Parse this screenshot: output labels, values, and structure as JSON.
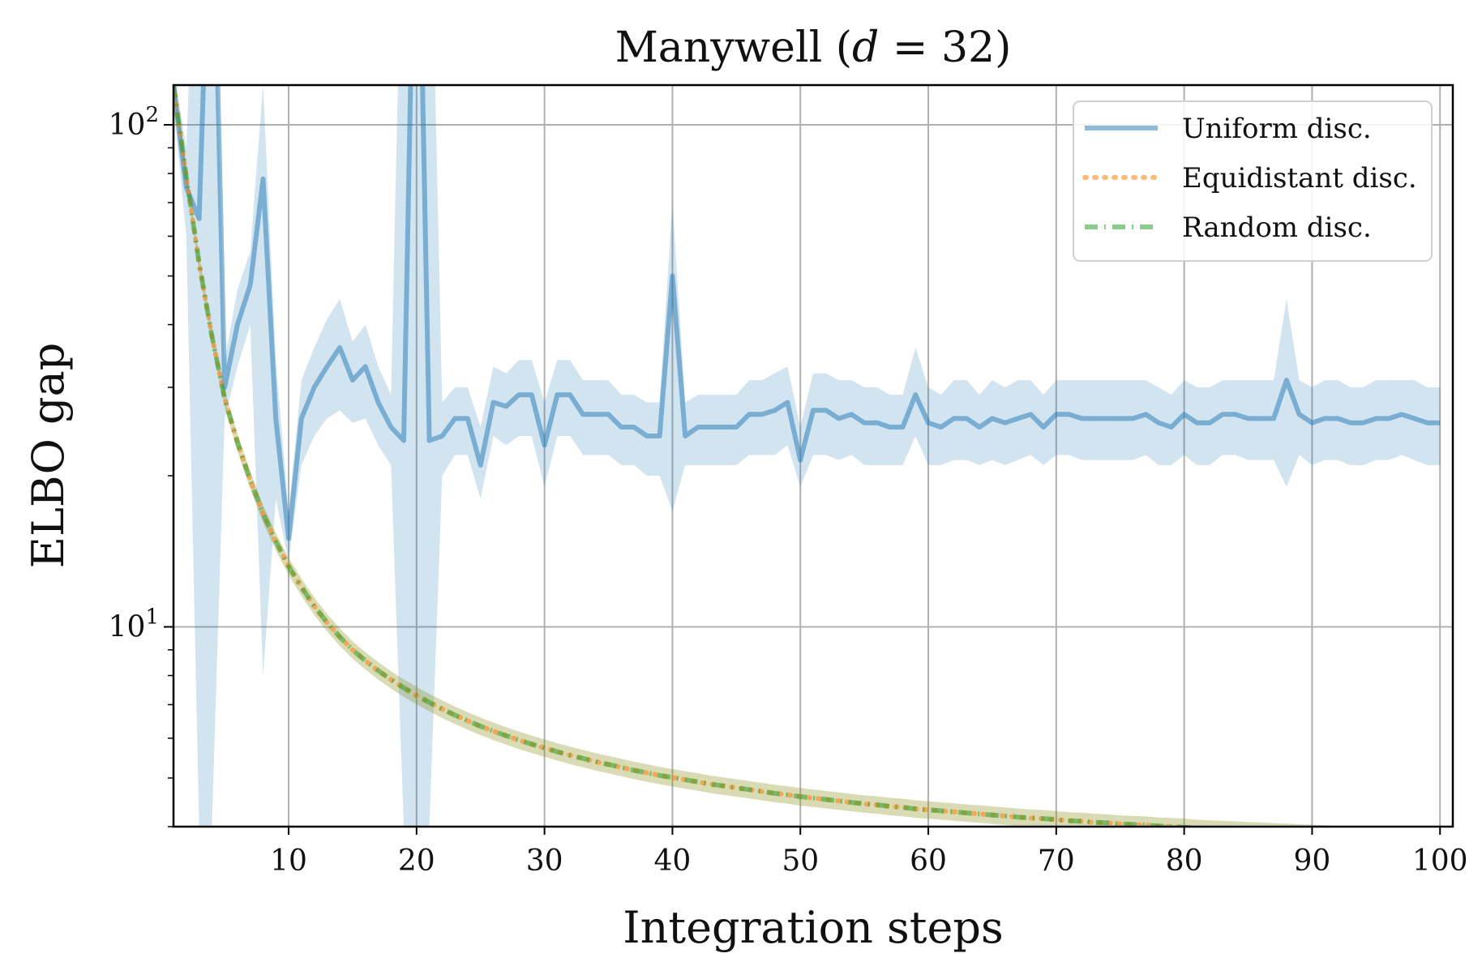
{
  "chart_data": {
    "type": "line",
    "title": "Manywell (d = 32)",
    "title_main": "Manywell (",
    "title_var": "d",
    "title_rest": " = 32)",
    "xlabel": "Integration steps",
    "ylabel": "ELBO gap",
    "yscale": "log",
    "xlim": [
      1,
      101
    ],
    "ylim": [
      4.0,
      120
    ],
    "grid": true,
    "legend_loc": "upper right",
    "xticks": [
      10,
      20,
      30,
      40,
      50,
      60,
      70,
      80,
      90,
      100
    ],
    "yticks": [
      {
        "value": 10,
        "base": "10",
        "exp": "1"
      },
      {
        "value": 100,
        "base": "10",
        "exp": "2"
      }
    ],
    "x": [
      1,
      2,
      3,
      4,
      5,
      6,
      7,
      8,
      9,
      10,
      11,
      12,
      13,
      14,
      15,
      16,
      17,
      18,
      19,
      20,
      21,
      22,
      23,
      24,
      25,
      26,
      27,
      28,
      29,
      30,
      31,
      32,
      33,
      34,
      35,
      36,
      37,
      38,
      39,
      40,
      41,
      42,
      43,
      44,
      45,
      46,
      47,
      48,
      49,
      50,
      51,
      52,
      53,
      54,
      55,
      56,
      57,
      58,
      59,
      60,
      61,
      62,
      63,
      64,
      65,
      66,
      67,
      68,
      69,
      70,
      71,
      72,
      73,
      74,
      75,
      76,
      77,
      78,
      79,
      80,
      81,
      82,
      83,
      84,
      85,
      86,
      87,
      88,
      89,
      90,
      91,
      92,
      93,
      94,
      95,
      96,
      97,
      98,
      99,
      100
    ],
    "series": [
      {
        "name": "Uniform disc.",
        "color": "#1f77b4",
        "style": "solid",
        "values": [
          120,
          75,
          65,
          400,
          30,
          40,
          48,
          78,
          26,
          15,
          26,
          30,
          33,
          36,
          31,
          33,
          28,
          25,
          23.5,
          500,
          23.5,
          24,
          26,
          26,
          21,
          28,
          27.5,
          29,
          29,
          23,
          29,
          29,
          26.5,
          26.5,
          26.5,
          25,
          25,
          24,
          24,
          50,
          24,
          25,
          25,
          25,
          25,
          26.5,
          26.5,
          27,
          28,
          21.5,
          27,
          27,
          26,
          26.5,
          25.5,
          25.5,
          25,
          25,
          29,
          25.5,
          25,
          26,
          26,
          25,
          26,
          25.5,
          26,
          26.5,
          25,
          26.5,
          26.5,
          26,
          26,
          26,
          26,
          26,
          26.5,
          25.5,
          25,
          26.5,
          25.5,
          25.5,
          26.5,
          26.5,
          26,
          26,
          26,
          31,
          26.5,
          25.5,
          26,
          26,
          25.5,
          25.5,
          26,
          26,
          26.5,
          26,
          25.5,
          25.5
        ],
        "band_lower": [
          110,
          60,
          4,
          4,
          26,
          33,
          40,
          8,
          18,
          13.5,
          21,
          24,
          26,
          27,
          25.5,
          26,
          23,
          21,
          4,
          4,
          4,
          20,
          22,
          22,
          18,
          24,
          23,
          24,
          24,
          19,
          24,
          24,
          22,
          22,
          22,
          21,
          21,
          20,
          20,
          17,
          21,
          21,
          21,
          21,
          21,
          22,
          22,
          22,
          23,
          19,
          22,
          22,
          21.5,
          22,
          21,
          21,
          21,
          21,
          24,
          21,
          21,
          21.5,
          21.5,
          21,
          21.5,
          21,
          21.5,
          22,
          21,
          22,
          22,
          21.5,
          21.5,
          21.5,
          21.5,
          21.5,
          22,
          21,
          21,
          22,
          21,
          21,
          22,
          22,
          21.5,
          21.5,
          21.5,
          19,
          22,
          21,
          21.5,
          21.5,
          21,
          21,
          21.5,
          21.5,
          22,
          21.5,
          21,
          21
        ],
        "band_upper": [
          130,
          90,
          400,
          400,
          34,
          47,
          56,
          120,
          34,
          17,
          31,
          36,
          41,
          45,
          37,
          40,
          33,
          29,
          400,
          400,
          400,
          28,
          30,
          30,
          25,
          33,
          32,
          34,
          34,
          28,
          34,
          34,
          31,
          31,
          31,
          29,
          29,
          28,
          28,
          70,
          28,
          29,
          29,
          29,
          29,
          31,
          31,
          32,
          33,
          25,
          32,
          32,
          31,
          31,
          30,
          30,
          29,
          29,
          36,
          30,
          29,
          31,
          31,
          29,
          31,
          30,
          31,
          31,
          29,
          31,
          31,
          31,
          31,
          31,
          31,
          31,
          31,
          30,
          29,
          31,
          30,
          30,
          31,
          31,
          31,
          31,
          31,
          45,
          31,
          30,
          31,
          31,
          30,
          30,
          31,
          31,
          31,
          31,
          30,
          30
        ]
      },
      {
        "name": "Equidistant disc.",
        "color": "#ff7f0e",
        "style": "dotted",
        "values": [
          120,
          79,
          53,
          38,
          28.5,
          23.3,
          19.6,
          16.8,
          14.8,
          13.2,
          12,
          11,
          10.2,
          9.55,
          9,
          8.56,
          8.18,
          7.85,
          7.56,
          7.3,
          7.07,
          6.86,
          6.67,
          6.5,
          6.34,
          6.2,
          6.07,
          5.95,
          5.84,
          5.74,
          5.64,
          5.55,
          5.47,
          5.39,
          5.32,
          5.25,
          5.18,
          5.12,
          5.06,
          5.01,
          4.96,
          4.91,
          4.86,
          4.82,
          4.78,
          4.74,
          4.7,
          4.66,
          4.63,
          4.59,
          4.56,
          4.53,
          4.5,
          4.47,
          4.44,
          4.42,
          4.39,
          4.37,
          4.34,
          4.32,
          4.3,
          4.28,
          4.26,
          4.24,
          4.22,
          4.2,
          4.18,
          4.16,
          4.15,
          4.13,
          4.11,
          4.1,
          4.08,
          4.07,
          4.05,
          4.04,
          4.03,
          4.01,
          4.0,
          3.99,
          3.97,
          3.96,
          3.95,
          3.94,
          3.93,
          3.92,
          3.91,
          3.9,
          3.89,
          3.88,
          3.87,
          3.86,
          3.85,
          3.84,
          3.83,
          3.82,
          3.81,
          3.81,
          3.8,
          3.79
        ]
      },
      {
        "name": "Random disc.",
        "color": "#2ca02c",
        "style": "dashdot",
        "values": [
          120,
          79,
          53,
          38,
          28.5,
          23.3,
          19.6,
          16.8,
          14.8,
          13.2,
          12,
          11,
          10.2,
          9.55,
          9,
          8.56,
          8.18,
          7.85,
          7.56,
          7.3,
          7.07,
          6.86,
          6.67,
          6.5,
          6.34,
          6.2,
          6.07,
          5.95,
          5.84,
          5.74,
          5.64,
          5.55,
          5.47,
          5.39,
          5.32,
          5.25,
          5.18,
          5.12,
          5.06,
          5.01,
          4.96,
          4.91,
          4.86,
          4.82,
          4.78,
          4.74,
          4.7,
          4.66,
          4.63,
          4.59,
          4.56,
          4.53,
          4.5,
          4.47,
          4.44,
          4.42,
          4.39,
          4.37,
          4.34,
          4.32,
          4.3,
          4.28,
          4.26,
          4.24,
          4.22,
          4.2,
          4.18,
          4.16,
          4.15,
          4.13,
          4.11,
          4.1,
          4.08,
          4.07,
          4.05,
          4.04,
          4.03,
          4.01,
          4.0,
          3.99,
          3.97,
          3.96,
          3.95,
          3.94,
          3.93,
          3.92,
          3.91,
          3.9,
          3.89,
          3.88,
          3.87,
          3.86,
          3.85,
          3.84,
          3.83,
          3.82,
          3.81,
          3.81,
          3.8,
          3.79
        ]
      }
    ]
  }
}
